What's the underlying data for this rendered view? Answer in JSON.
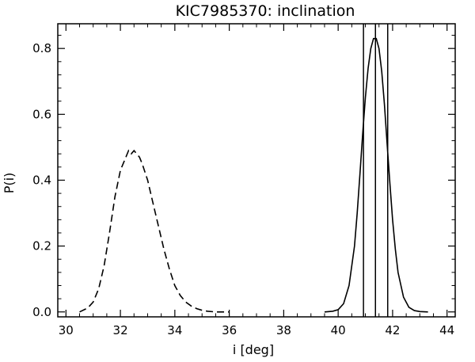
{
  "chart_data": {
    "type": "line",
    "title": "KIC7985370: inclination",
    "xlabel": "i [deg]",
    "ylabel": "P(i)",
    "xlim": [
      29.7,
      44.3
    ],
    "ylim": [
      -0.015,
      0.875
    ],
    "xticks": [
      30,
      32,
      34,
      36,
      38,
      40,
      42,
      44
    ],
    "yticks": [
      0.0,
      0.2,
      0.4,
      0.6,
      0.8
    ],
    "xtick_labels": [
      "30",
      "32",
      "34",
      "36",
      "38",
      "40",
      "42",
      "44"
    ],
    "ytick_labels": [
      "0.0",
      "0.2",
      "0.4",
      "0.6",
      "0.8"
    ],
    "grid": false,
    "series": [
      {
        "style": "dashed",
        "x": [
          30.5,
          30.8,
          31.0,
          31.2,
          31.4,
          31.6,
          31.8,
          32.0,
          32.2,
          32.3,
          32.4,
          32.5,
          32.6,
          32.7,
          32.8,
          33.0,
          33.2,
          33.4,
          33.6,
          33.8,
          34.0,
          34.2,
          34.4,
          34.6,
          34.8,
          35.0,
          35.2,
          35.5,
          36.0
        ],
        "y": [
          0.0,
          0.012,
          0.03,
          0.07,
          0.14,
          0.24,
          0.35,
          0.43,
          0.47,
          0.49,
          0.48,
          0.49,
          0.48,
          0.47,
          0.45,
          0.4,
          0.33,
          0.26,
          0.19,
          0.13,
          0.08,
          0.05,
          0.03,
          0.018,
          0.01,
          0.005,
          0.002,
          0.0,
          0.0
        ]
      },
      {
        "style": "solid",
        "x": [
          39.5,
          39.8,
          40.0,
          40.2,
          40.4,
          40.6,
          40.7,
          40.8,
          40.9,
          41.0,
          41.1,
          41.2,
          41.3,
          41.4,
          41.5,
          41.6,
          41.7,
          41.8,
          41.9,
          42.0,
          42.1,
          42.2,
          42.4,
          42.6,
          42.8,
          43.0,
          43.3
        ],
        "y": [
          0.0,
          0.002,
          0.007,
          0.025,
          0.08,
          0.2,
          0.3,
          0.42,
          0.54,
          0.65,
          0.74,
          0.8,
          0.83,
          0.83,
          0.8,
          0.73,
          0.63,
          0.51,
          0.39,
          0.28,
          0.19,
          0.12,
          0.045,
          0.014,
          0.004,
          0.001,
          0.0
        ]
      }
    ],
    "vlines": [
      40.93,
      41.37,
      41.82
    ]
  }
}
